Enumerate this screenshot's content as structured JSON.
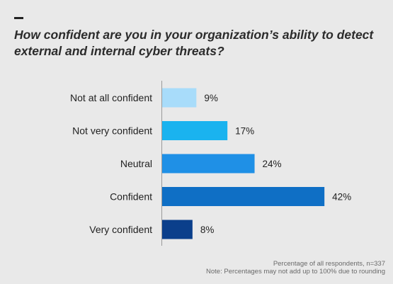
{
  "title": "How confident are you in your organization’s ability to detect external and internal cyber threats?",
  "chart_data": {
    "type": "bar",
    "orientation": "horizontal",
    "title": "How confident are you in your organization’s ability to detect external and internal cyber threats?",
    "categories": [
      "Not at all confident",
      "Not very confident",
      "Neutral",
      "Confident",
      "Very confident"
    ],
    "values": [
      9,
      17,
      24,
      42,
      8
    ],
    "value_labels": [
      "9%",
      "17%",
      "24%",
      "42%",
      "8%"
    ],
    "colors": [
      "#a8dcfa",
      "#1ab3ef",
      "#1f90e6",
      "#0f6fc5",
      "#0b3f8b"
    ],
    "xlim": [
      0,
      50
    ],
    "grid": false,
    "legend": "none"
  },
  "footnote": {
    "line1": "Percentage of all respondents, n=337",
    "line2": "Note: Percentages may not add up to 100% due to rounding"
  }
}
